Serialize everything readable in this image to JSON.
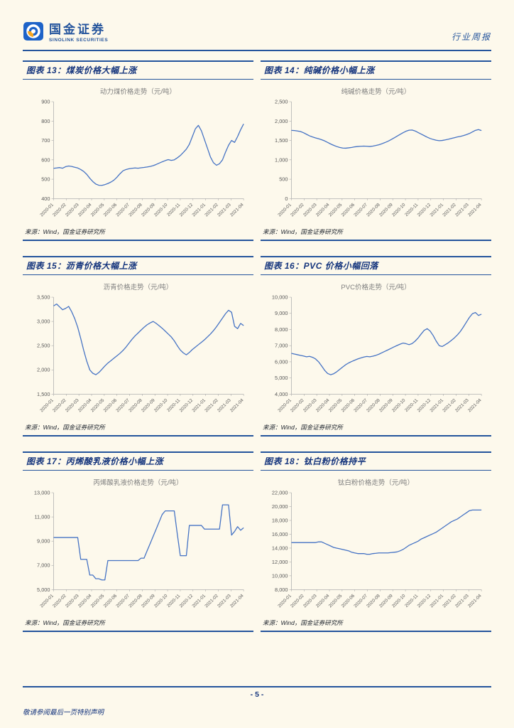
{
  "colors": {
    "accent": "#24549c",
    "chart_line": "#4472c4",
    "page_bg": "#fdf9ec",
    "tick_text": "#595959",
    "title_text": "#7f7f7f"
  },
  "header": {
    "brand": "国金证券",
    "brand_sub": "SINOLINK SECURITIES",
    "doc_type": "行业周报",
    "logo_icon": "sinolink-logo"
  },
  "footer": {
    "page_label": "- 5 -",
    "disclaimer": "敬请参阅最后一页特别声明"
  },
  "chart_data": [
    {
      "figure_label": "图表 13：煤炭价格大幅上涨",
      "title": "动力煤价格走势（元/吨）",
      "source": "来源：Wind，国金证券研究所",
      "type": "line",
      "x_labels": [
        "2020-01",
        "2020-02",
        "2020-03",
        "2020-04",
        "2020-05",
        "2020-06",
        "2020-07",
        "2020-08",
        "2020-09",
        "2020-10",
        "2020-11",
        "2020-12",
        "2021-01",
        "2021-02",
        "2021-03",
        "2021-04"
      ],
      "ylim": [
        400,
        900
      ],
      "yticks": [
        400,
        500,
        600,
        700,
        800,
        900
      ],
      "values": [
        556,
        558,
        560,
        557,
        565,
        568,
        566,
        562,
        558,
        550,
        540,
        525,
        505,
        488,
        475,
        469,
        468,
        472,
        478,
        485,
        495,
        510,
        528,
        543,
        550,
        554,
        556,
        558,
        557,
        559,
        561,
        563,
        566,
        570,
        576,
        583,
        590,
        596,
        601,
        597,
        600,
        610,
        622,
        638,
        655,
        680,
        720,
        760,
        778,
        750,
        705,
        660,
        615,
        585,
        572,
        580,
        600,
        640,
        675,
        700,
        690,
        720,
        755,
        785
      ]
    },
    {
      "figure_label": "图表 14：纯碱价格小幅上涨",
      "title": "纯碱价格走势（元/吨）",
      "source": "来源：Wind，国金证券研究所",
      "type": "line",
      "x_labels": [
        "2020-01",
        "2020-02",
        "2020-03",
        "2020-04",
        "2020-05",
        "2020-06",
        "2020-07",
        "2020-08",
        "2020-09",
        "2020-10",
        "2020-11",
        "2020-12",
        "2021-01",
        "2021-02",
        "2021-03",
        "2021-04"
      ],
      "ylim": [
        0,
        2500
      ],
      "yticks": [
        0,
        500,
        1000,
        1500,
        2000,
        2500
      ],
      "values": [
        1760,
        1755,
        1745,
        1730,
        1700,
        1660,
        1620,
        1590,
        1565,
        1545,
        1520,
        1490,
        1450,
        1410,
        1375,
        1345,
        1320,
        1305,
        1300,
        1310,
        1320,
        1335,
        1345,
        1350,
        1355,
        1350,
        1345,
        1355,
        1370,
        1390,
        1415,
        1445,
        1480,
        1520,
        1565,
        1610,
        1655,
        1700,
        1740,
        1765,
        1770,
        1745,
        1705,
        1665,
        1625,
        1585,
        1550,
        1525,
        1505,
        1495,
        1500,
        1515,
        1530,
        1550,
        1570,
        1590,
        1605,
        1625,
        1650,
        1680,
        1720,
        1760,
        1780,
        1755
      ]
    },
    {
      "figure_label": "图表 15：沥青价格大幅上涨",
      "title": "沥青价格走势（元/吨）",
      "source": "来源：Wind，国金证券研究所",
      "type": "line",
      "x_labels": [
        "2020-01",
        "2020-02",
        "2020-03",
        "2020-04",
        "2020-05",
        "2020-06",
        "2020-07",
        "2020-08",
        "2020-09",
        "2020-10",
        "2020-11",
        "2020-12",
        "2021-01",
        "2021-02",
        "2021-03",
        "2021-04"
      ],
      "ylim": [
        1500,
        3500
      ],
      "yticks": [
        1500,
        2000,
        2500,
        3000,
        3500
      ],
      "values": [
        3320,
        3360,
        3300,
        3240,
        3270,
        3310,
        3200,
        3060,
        2880,
        2650,
        2400,
        2180,
        2000,
        1930,
        1900,
        1945,
        2010,
        2080,
        2140,
        2190,
        2240,
        2290,
        2340,
        2400,
        2470,
        2550,
        2630,
        2700,
        2760,
        2820,
        2880,
        2930,
        2970,
        3000,
        2960,
        2910,
        2860,
        2800,
        2740,
        2680,
        2600,
        2500,
        2410,
        2350,
        2310,
        2360,
        2420,
        2470,
        2520,
        2570,
        2620,
        2680,
        2740,
        2810,
        2890,
        2980,
        3070,
        3160,
        3230,
        3190,
        2900,
        2850,
        2960,
        2915
      ]
    },
    {
      "figure_label": "图表 16：PVC 价格小幅回落",
      "title": "PVC价格走势（元/吨）",
      "source": "来源：Wind，国金证券研究所",
      "type": "line",
      "x_labels": [
        "2020-01",
        "2020-02",
        "2020-03",
        "2020-04",
        "2020-05",
        "2020-06",
        "2020-07",
        "2020-08",
        "2020-09",
        "2020-10",
        "2020-11",
        "2020-12",
        "2021-01",
        "2021-02",
        "2021-03",
        "2021-04"
      ],
      "ylim": [
        4000,
        10000
      ],
      "yticks": [
        4000,
        5000,
        6000,
        7000,
        8000,
        9000,
        10000
      ],
      "values": [
        6520,
        6480,
        6440,
        6400,
        6360,
        6310,
        6340,
        6280,
        6180,
        6000,
        5750,
        5480,
        5280,
        5200,
        5260,
        5380,
        5530,
        5680,
        5820,
        5930,
        6020,
        6100,
        6180,
        6240,
        6290,
        6330,
        6310,
        6350,
        6400,
        6470,
        6560,
        6650,
        6740,
        6830,
        6920,
        7010,
        7090,
        7160,
        7120,
        7060,
        7130,
        7280,
        7480,
        7720,
        7950,
        8050,
        7900,
        7620,
        7280,
        7000,
        6950,
        7060,
        7180,
        7320,
        7480,
        7660,
        7880,
        8150,
        8450,
        8750,
        8980,
        9050,
        8870,
        8950
      ]
    },
    {
      "figure_label": "图表 17：丙烯酸乳液价格小幅上涨",
      "title": "丙烯酸乳液价格走势（元/吨）",
      "source": "来源：Wind，国金证券研究所",
      "type": "line",
      "x_labels": [
        "2020-01",
        "2020-02",
        "2020-03",
        "2020-04",
        "2020-05",
        "2020-06",
        "2020-07",
        "2020-08",
        "2020-09",
        "2020-10",
        "2020-11",
        "2020-12",
        "2021-01",
        "2021-02",
        "2021-03",
        "2021-04"
      ],
      "ylim": [
        5000,
        13000
      ],
      "yticks": [
        5000,
        7000,
        9000,
        11000,
        13000
      ],
      "values": [
        9300,
        9300,
        9300,
        9300,
        9300,
        9300,
        9300,
        9300,
        9300,
        7500,
        7500,
        7500,
        6200,
        6200,
        5900,
        5900,
        5800,
        5800,
        7400,
        7400,
        7400,
        7400,
        7400,
        7400,
        7400,
        7400,
        7400,
        7400,
        7400,
        7600,
        7600,
        8200,
        8800,
        9400,
        10000,
        10600,
        11200,
        11500,
        11500,
        11500,
        11500,
        9600,
        7800,
        7800,
        7800,
        10300,
        10300,
        10300,
        10300,
        10300,
        10000,
        10000,
        10000,
        10000,
        10000,
        10000,
        12000,
        12000,
        12000,
        9500,
        9800,
        10200,
        9900,
        10100
      ]
    },
    {
      "figure_label": "图表 18：钛白粉价格持平",
      "title": "钛白粉价格走势（元/吨）",
      "source": "来源：Wind，国金证券研究所",
      "type": "line",
      "x_labels": [
        "2020-01",
        "2020-02",
        "2020-03",
        "2020-04",
        "2020-05",
        "2020-06",
        "2020-07",
        "2020-08",
        "2020-09",
        "2020-10",
        "2020-11",
        "2020-12",
        "2021-01",
        "2021-02",
        "2021-03",
        "2021-04"
      ],
      "ylim": [
        8000,
        22000
      ],
      "yticks": [
        8000,
        10000,
        12000,
        14000,
        16000,
        18000,
        20000,
        22000
      ],
      "values": [
        14800,
        14800,
        14800,
        14800,
        14800,
        14800,
        14800,
        14800,
        14800,
        14900,
        14900,
        14700,
        14500,
        14300,
        14100,
        14000,
        13900,
        13800,
        13700,
        13600,
        13400,
        13300,
        13200,
        13200,
        13200,
        13100,
        13100,
        13200,
        13250,
        13300,
        13300,
        13300,
        13300,
        13350,
        13400,
        13450,
        13600,
        13800,
        14100,
        14400,
        14600,
        14800,
        15000,
        15300,
        15500,
        15700,
        15900,
        16100,
        16300,
        16600,
        16900,
        17200,
        17500,
        17800,
        18000,
        18200,
        18500,
        18800,
        19100,
        19400,
        19500,
        19500,
        19500,
        19500
      ]
    }
  ]
}
